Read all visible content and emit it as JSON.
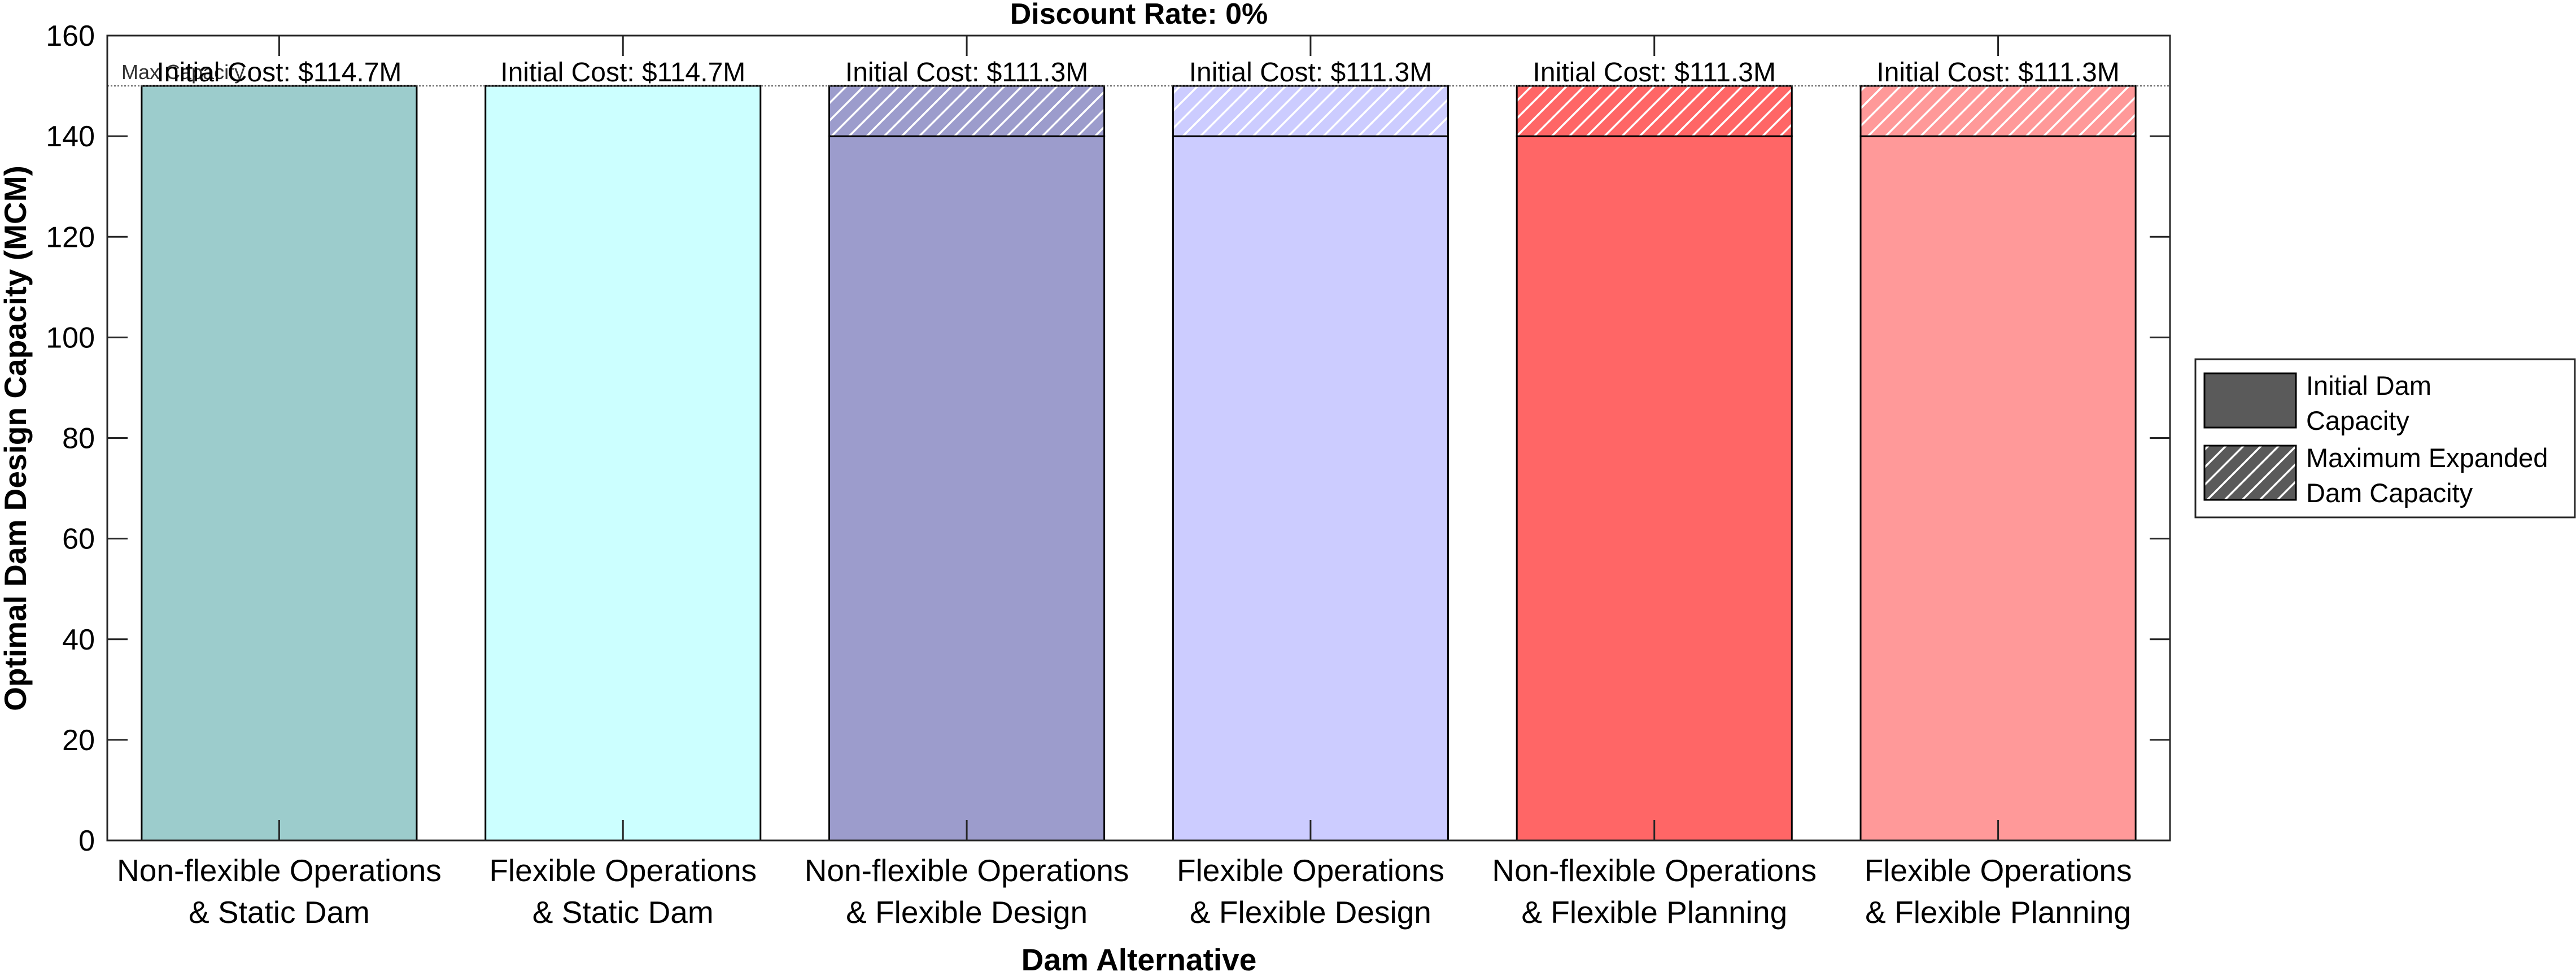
{
  "chart_data": {
    "type": "bar",
    "title": "Discount Rate: 0%",
    "xlabel": "Dam Alternative",
    "ylabel": "Optimal Dam Design Capacity (MCM)",
    "ylim": [
      0,
      160
    ],
    "yticks": [
      0,
      20,
      40,
      60,
      80,
      100,
      120,
      140,
      160
    ],
    "grid": false,
    "legend_position": "right",
    "categories": [
      [
        "Non-flexible Operations",
        "& Static Dam"
      ],
      [
        "Flexible Operations",
        "& Static Dam"
      ],
      [
        "Non-flexible Operations",
        "& Flexible Design"
      ],
      [
        "Flexible Operations",
        "& Flexible Design"
      ],
      [
        "Non-flexible Operations",
        "& Flexible Planning"
      ],
      [
        "Flexible Operations",
        "& Flexible Planning"
      ]
    ],
    "series": [
      {
        "name": "Initial Dam Capacity",
        "values": [
          150,
          150,
          140,
          140,
          140,
          140
        ]
      },
      {
        "name": "Maximum Expanded Dam Capacity",
        "values": [
          150,
          150,
          150,
          150,
          150,
          150
        ]
      }
    ],
    "bar_colors": [
      "#9ccccc",
      "#ccffff",
      "#9c9ccc",
      "#ccccff",
      "#ff6666",
      "#ff9999"
    ],
    "annotations": [
      "Initial Cost: $114.7M",
      "Initial Cost: $114.7M",
      "Initial Cost: $111.3M",
      "Initial Cost: $111.3M",
      "Initial Cost: $111.3M",
      "Initial Cost: $111.3M"
    ],
    "reference_line": {
      "value": 150,
      "label": "Max Capacity"
    },
    "legend": [
      {
        "label": [
          "Initial Dam",
          "Capacity"
        ],
        "swatch": "solid",
        "color": "#5a5a5a"
      },
      {
        "label": [
          "Maximum Expanded",
          "Dam Capacity"
        ],
        "swatch": "hatched",
        "color": "#5a5a5a"
      }
    ]
  }
}
